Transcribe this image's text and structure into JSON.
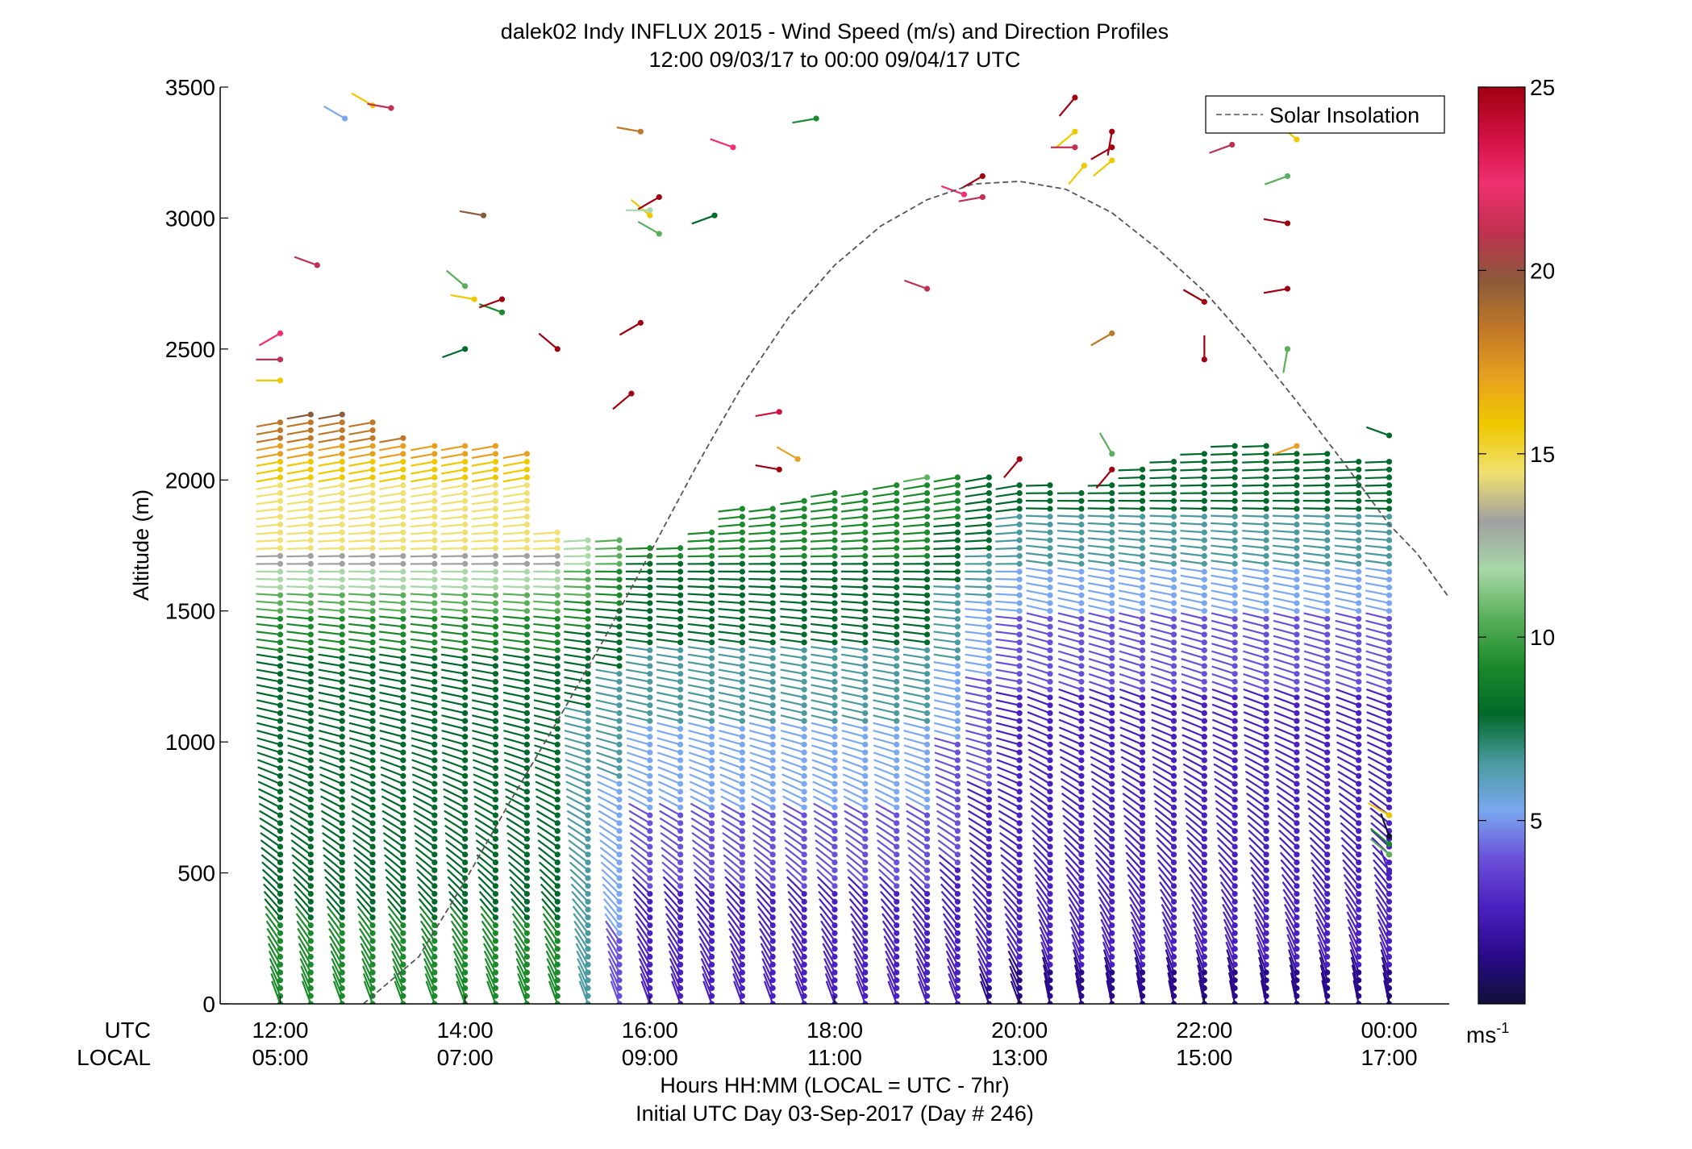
{
  "chart_data": {
    "type": "wind-profile",
    "title": "dalek02 Indy INFLUX 2015 - Wind Speed (m/s) and Direction Profiles",
    "subtitle": "12:00 09/03/17 to 00:00 09/04/17  UTC",
    "ylabel": "Altitude (m)",
    "xlabel": "Hours HH:MM  (LOCAL = UTC - 7hr)",
    "xlabel2": "Initial UTC Day 03-Sep-2017 (Day # 246)",
    "row_label_utc": "UTC",
    "row_label_local": "LOCAL",
    "xlim": [
      11.35,
      24.65
    ],
    "ylim": [
      0,
      3500
    ],
    "y_ticks": [
      0,
      500,
      1000,
      1500,
      2000,
      2500,
      3000,
      3500
    ],
    "y_tick_labels": [
      "0",
      "500",
      "1000",
      "1500",
      "2000",
      "2500",
      "3000",
      "3500"
    ],
    "x_ticks": [
      12,
      14,
      16,
      18,
      20,
      22,
      24
    ],
    "x_tick_labels_utc": [
      "12:00",
      "14:00",
      "16:00",
      "18:00",
      "20:00",
      "22:00",
      "00:00"
    ],
    "x_tick_labels_local": [
      "05:00",
      "07:00",
      "09:00",
      "11:00",
      "13:00",
      "15:00",
      "17:00"
    ],
    "legend": {
      "label": "Solar Insolation",
      "placement": "top-right"
    },
    "solar_insolation": {
      "style": "dashed",
      "color": "#555555",
      "x": [
        12.9,
        13.5,
        14.0,
        14.5,
        15.0,
        15.5,
        16.0,
        16.5,
        17.0,
        17.5,
        18.0,
        18.5,
        19.0,
        19.5,
        20.0,
        20.5,
        21.0,
        21.5,
        22.0,
        22.5,
        23.0,
        23.5,
        24.0,
        24.3,
        24.65
      ],
      "y": [
        0,
        180,
        470,
        780,
        1080,
        1390,
        1720,
        2050,
        2360,
        2620,
        2820,
        2970,
        3070,
        3130,
        3140,
        3110,
        3020,
        2880,
        2720,
        2520,
        2300,
        2070,
        1830,
        1720,
        1550
      ]
    },
    "colorbar": {
      "label": "ms",
      "label_superscript": "-1",
      "range": [
        0,
        25
      ],
      "ticks": [
        5,
        10,
        15,
        20,
        25
      ],
      "colors": [
        "#10103a",
        "#2a0a8a",
        "#4a20c0",
        "#6a50d8",
        "#7aa8f0",
        "#4a9aa0",
        "#006a2a",
        "#1a8a2a",
        "#5ab05a",
        "#a8d8a8",
        "#a0a0a0",
        "#f0e070",
        "#f0c800",
        "#e8a020",
        "#c07828",
        "#8a5a3a",
        "#c03050",
        "#f03070",
        "#d01040",
        "#a00010"
      ]
    },
    "profile_times": [
      12.0,
      12.33,
      12.67,
      13.0,
      13.33,
      13.67,
      14.0,
      14.33,
      14.67,
      15.0,
      15.33,
      15.67,
      16.0,
      16.33,
      16.67,
      17.0,
      17.33,
      17.67,
      18.0,
      18.33,
      18.67,
      19.0,
      19.33,
      19.67,
      20.0,
      20.33,
      20.67,
      21.0,
      21.33,
      21.67,
      22.0,
      22.33,
      22.67,
      23.0,
      23.33,
      23.67,
      24.0
    ],
    "profile_top_altitudes": [
      2220,
      2270,
      2250,
      2230,
      2170,
      2150,
      2140,
      2130,
      2120,
      1810,
      1790,
      1770,
      1760,
      1750,
      1810,
      1890,
      1900,
      1920,
      1950,
      1970,
      1990,
      2010,
      2020,
      2010,
      1990,
      1990,
      1970,
      2000,
      2060,
      2080,
      2120,
      2140,
      2130,
      2110,
      2100,
      2090,
      2090
    ],
    "speed_profile_ms": {
      "altitudes": [
        0,
        250,
        500,
        750,
        1000,
        1250,
        1500,
        1750,
        2000,
        2250
      ],
      "morning_12_15": [
        9,
        9,
        8,
        8,
        8,
        8,
        10,
        14,
        15,
        19
      ],
      "midday_16_19": [
        3,
        3,
        4,
        5,
        6,
        7,
        8,
        9,
        10,
        10
      ],
      "afternoon_20_24": [
        2,
        3,
        3,
        3,
        3,
        4,
        5,
        7,
        8,
        8
      ]
    },
    "direction_profile_deg": {
      "altitudes": [
        0,
        500,
        1000,
        1500,
        2000
      ],
      "values": [
        200,
        230,
        255,
        265,
        280
      ]
    },
    "upper_sparse_barbs": [
      [
        12.0,
        2560,
        22,
        300
      ],
      [
        12.0,
        2460,
        20,
        270
      ],
      [
        12.0,
        2380,
        16,
        270
      ],
      [
        12.4,
        2820,
        20,
        250
      ],
      [
        12.7,
        3380,
        6,
        240
      ],
      [
        13.0,
        3430,
        16,
        240
      ],
      [
        13.2,
        3420,
        20,
        260
      ],
      [
        14.0,
        2740,
        10,
        230
      ],
      [
        14.1,
        2690,
        16,
        260
      ],
      [
        14.4,
        2640,
        9,
        250
      ],
      [
        14.4,
        2690,
        25,
        290
      ],
      [
        15.0,
        2500,
        24,
        230
      ],
      [
        14.2,
        3010,
        19,
        260
      ],
      [
        14.0,
        2500,
        8,
        290
      ],
      [
        15.9,
        2600,
        25,
        300
      ],
      [
        16.0,
        3010,
        15,
        230
      ],
      [
        16.0,
        3030,
        12,
        270
      ],
      [
        16.1,
        2940,
        11,
        240
      ],
      [
        16.1,
        3080,
        25,
        300
      ],
      [
        15.8,
        2330,
        25,
        310
      ],
      [
        15.9,
        3330,
        18,
        260
      ],
      [
        16.7,
        3010,
        8,
        290
      ],
      [
        16.9,
        3270,
        22,
        250
      ],
      [
        17.4,
        2260,
        23,
        280
      ],
      [
        17.4,
        2040,
        25,
        260
      ],
      [
        17.6,
        2080,
        17,
        240
      ],
      [
        17.8,
        3380,
        9,
        280
      ],
      [
        19.0,
        2730,
        20,
        250
      ],
      [
        19.4,
        3090,
        22,
        250
      ],
      [
        19.6,
        3160,
        25,
        300
      ],
      [
        19.6,
        3080,
        20,
        280
      ],
      [
        20.0,
        2080,
        25,
        320
      ],
      [
        20.6,
        3460,
        25,
        320
      ],
      [
        20.6,
        3330,
        16,
        310
      ],
      [
        20.6,
        3270,
        20,
        270
      ],
      [
        20.7,
        3200,
        16,
        320
      ],
      [
        21.0,
        3330,
        25,
        350
      ],
      [
        21.0,
        3270,
        24,
        300
      ],
      [
        21.0,
        3220,
        16,
        310
      ],
      [
        21.0,
        2560,
        18,
        300
      ],
      [
        21.0,
        2040,
        25,
        320
      ],
      [
        21.0,
        2100,
        10,
        210
      ],
      [
        22.0,
        2680,
        25,
        240
      ],
      [
        22.0,
        2460,
        25,
        180
      ],
      [
        22.3,
        3280,
        20,
        290
      ],
      [
        22.9,
        2730,
        25,
        280
      ],
      [
        22.9,
        2980,
        25,
        260
      ],
      [
        22.9,
        2500,
        10,
        350
      ],
      [
        22.9,
        3160,
        10,
        290
      ],
      [
        23.0,
        3300,
        15,
        230
      ],
      [
        23.0,
        2130,
        17,
        290
      ],
      [
        24.0,
        2170,
        8,
        250
      ]
    ],
    "late_sparse_barbs": [
      [
        24.0,
        720,
        15,
        240
      ],
      [
        24.0,
        610,
        9,
        230
      ],
      [
        24.0,
        570,
        10,
        230
      ],
      [
        24.0,
        640,
        1,
        200
      ],
      [
        24.0,
        500,
        3,
        200
      ]
    ]
  }
}
